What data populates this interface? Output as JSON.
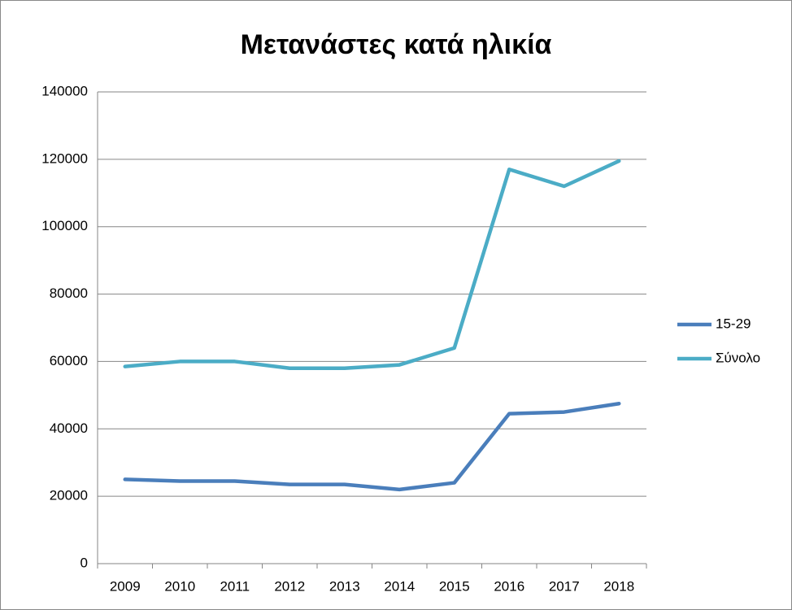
{
  "chart_data": {
    "type": "line",
    "title": "Μετανάστες κατά ηλικία",
    "categories": [
      "2009",
      "2010",
      "2011",
      "2012",
      "2013",
      "2014",
      "2015",
      "2016",
      "2017",
      "2018"
    ],
    "series": [
      {
        "name": "15-29",
        "color": "#4a7ebb",
        "values": [
          25000,
          24500,
          24500,
          23500,
          23500,
          22000,
          24000,
          44500,
          45000,
          47500
        ]
      },
      {
        "name": "Σύνολο",
        "color": "#4bacc6",
        "values": [
          58500,
          60000,
          60000,
          58000,
          58000,
          59000,
          64000,
          117000,
          112000,
          119500
        ]
      }
    ],
    "ylim": [
      0,
      140000
    ],
    "yticks": [
      0,
      20000,
      40000,
      60000,
      80000,
      100000,
      120000,
      140000
    ],
    "grid": true,
    "legend": "right"
  }
}
